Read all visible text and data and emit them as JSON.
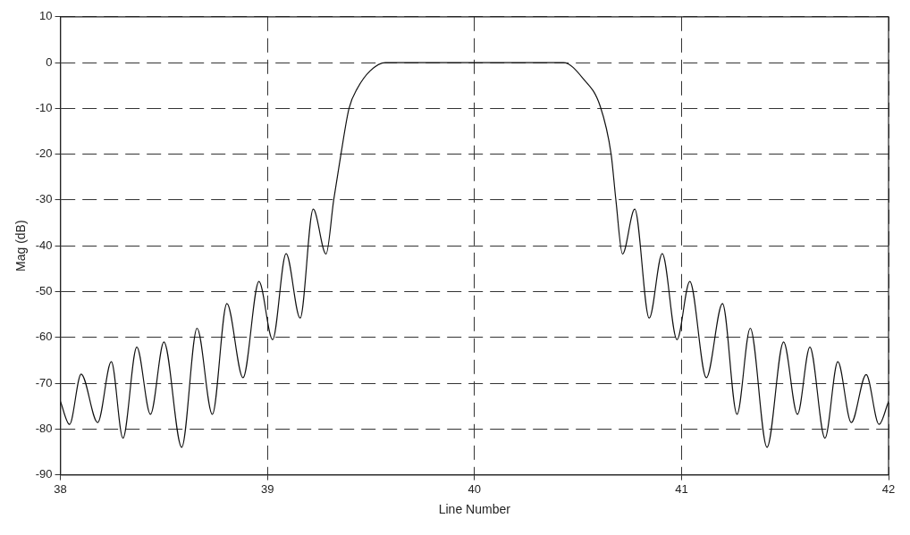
{
  "chart_data": {
    "type": "line",
    "xlabel": "Line Number",
    "ylabel": "Mag (dB)",
    "xlim": [
      38,
      42
    ],
    "xticks": [
      38,
      39,
      40,
      41,
      42
    ],
    "ylim": [
      -90,
      10
    ],
    "yticks": [
      -90,
      -80,
      -70,
      -60,
      -50,
      -40,
      -30,
      -20,
      -10,
      0,
      10
    ],
    "grid": true,
    "legend": false,
    "marker": "none",
    "line_style": "solid",
    "series": [
      {
        "color": "#111111",
        "x": [
          38,
          38.044,
          38.1,
          38.18,
          38.246,
          38.302,
          38.369,
          38.435,
          38.5,
          38.586,
          38.66,
          38.734,
          38.804,
          38.882,
          38.959,
          39.025,
          39.09,
          39.158,
          39.221,
          39.283,
          39.32,
          39.355,
          39.394,
          39.436,
          39.496,
          39.57,
          40.43,
          40.525,
          40.607,
          40.66,
          40.683,
          40.715,
          40.774,
          40.844,
          40.907,
          40.978,
          41.04,
          41.12,
          41.198,
          41.268,
          41.332,
          41.413,
          41.493,
          41.56,
          41.62,
          41.693,
          41.755,
          41.82,
          41.892,
          41.954,
          42
        ],
        "values": [
          -74,
          -79,
          -68,
          -78.6,
          -65.3,
          -82,
          -62.1,
          -76.8,
          -61,
          -84,
          -58,
          -76.8,
          -52.6,
          -68.8,
          -47.8,
          -60.5,
          -41.7,
          -55.8,
          -32,
          -41.8,
          -30,
          -20,
          -10,
          -5.5,
          -1.8,
          0,
          0,
          -3.5,
          -9.5,
          -20,
          -30,
          -41.8,
          -32,
          -55.8,
          -41.7,
          -60.5,
          -47.8,
          -68.8,
          -52.6,
          -76.8,
          -58,
          -84,
          -61,
          -76.8,
          -62.1,
          -82,
          -65.3,
          -78.6,
          -68.1,
          -79,
          -74
        ]
      }
    ]
  }
}
